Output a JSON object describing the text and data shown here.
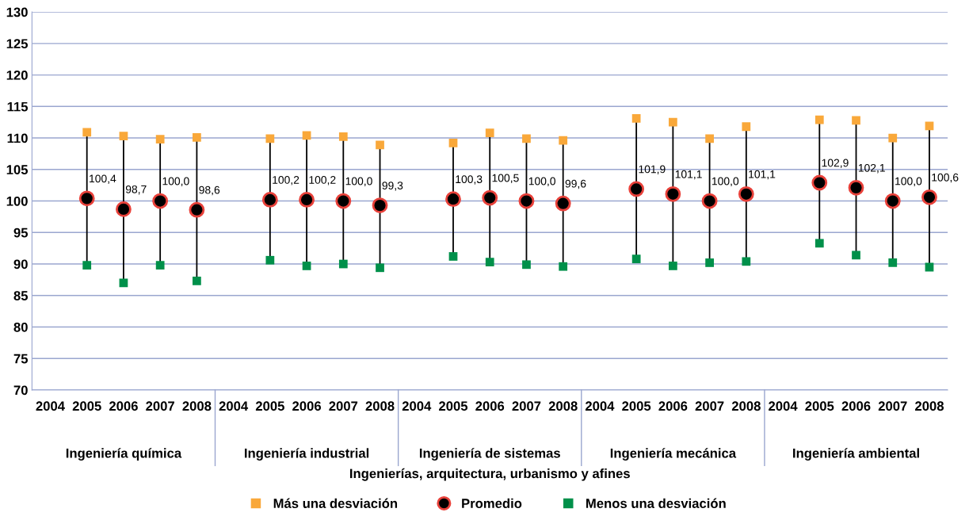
{
  "chart_data": {
    "type": "scatter",
    "categories": [
      "2004",
      "2005",
      "2006",
      "2007",
      "2008",
      "2004",
      "2005",
      "2006",
      "2007",
      "2008",
      "2004",
      "2005",
      "2006",
      "2007",
      "2008",
      "2004",
      "2005",
      "2006",
      "2007",
      "2008",
      "2004",
      "2005",
      "2006",
      "2007",
      "2008"
    ],
    "xlabel": "Ingenierías, arquitectura, urbanismo y afines",
    "annotations": [
      "Ingeniería química",
      "Ingeniería industrial",
      "Ingeniería de sistemas",
      "Ingeniería mecánica",
      "Ingeniería ambiental"
    ],
    "series": [
      {
        "name": "Más una desviación",
        "color": "#f9a83a",
        "marker": "square",
        "values": [
          null,
          110.9,
          110.3,
          109.8,
          110.1,
          null,
          109.9,
          110.4,
          110.2,
          108.9,
          null,
          109.2,
          110.8,
          109.9,
          109.6,
          null,
          113.1,
          112.5,
          109.9,
          111.8,
          null,
          112.9,
          112.8,
          110.0,
          111.9
        ]
      },
      {
        "name": "Promedio",
        "color": "#000000",
        "marker": "circle",
        "values": [
          null,
          100.4,
          98.7,
          100.0,
          98.6,
          null,
          100.2,
          100.2,
          100.0,
          99.3,
          null,
          100.3,
          100.5,
          100.0,
          99.6,
          null,
          101.9,
          101.1,
          100.0,
          101.1,
          null,
          102.9,
          102.1,
          100.0,
          100.6
        ],
        "value_labels": [
          null,
          "100,4",
          "98,7",
          "100,0",
          "98,6",
          null,
          "100,2",
          "100,2",
          "100,0",
          "99,3",
          null,
          "100,3",
          "100,5",
          "100,0",
          "99,6",
          null,
          "101,9",
          "101,1",
          "100,0",
          "101,1",
          null,
          "102,9",
          "102,1",
          "100,0",
          "100,6"
        ]
      },
      {
        "name": "Menos una desviación",
        "color": "#00904a",
        "marker": "square",
        "values": [
          null,
          89.8,
          87.0,
          89.8,
          87.3,
          null,
          90.6,
          89.7,
          90.0,
          89.4,
          null,
          91.2,
          90.3,
          89.9,
          89.6,
          null,
          90.8,
          89.7,
          90.2,
          90.4,
          null,
          93.3,
          91.4,
          90.2,
          89.5
        ]
      }
    ],
    "ylim": [
      70,
      130
    ],
    "yticks": [
      70,
      75,
      80,
      85,
      90,
      95,
      100,
      105,
      110,
      115,
      120,
      125,
      130
    ],
    "grid": "y",
    "legend": "bottom"
  }
}
